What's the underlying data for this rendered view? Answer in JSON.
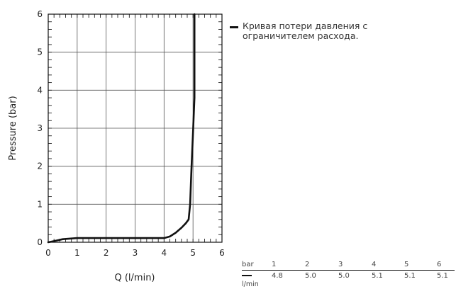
{
  "chart_data": {
    "type": "line",
    "title": "",
    "xlabel": "Q (l/min)",
    "ylabel": "Pressure (bar)",
    "xlim": [
      0,
      6
    ],
    "ylim": [
      0,
      6
    ],
    "x_ticks": [
      "0",
      "1",
      "2",
      "3",
      "4",
      "5",
      "6"
    ],
    "y_ticks": [
      "0",
      "1",
      "2",
      "3",
      "4",
      "5",
      "6"
    ],
    "grid": true,
    "legend_placement": "right",
    "series": [
      {
        "name": "Кривая потери давления с ограничителем расхода.",
        "color": "#111111",
        "points": [
          [
            0.0,
            0.0
          ],
          [
            0.2,
            0.03
          ],
          [
            0.5,
            0.08
          ],
          [
            1.0,
            0.11
          ],
          [
            2.0,
            0.11
          ],
          [
            3.0,
            0.11
          ],
          [
            4.0,
            0.11
          ],
          [
            4.2,
            0.15
          ],
          [
            4.4,
            0.25
          ],
          [
            4.6,
            0.38
          ],
          [
            4.75,
            0.5
          ],
          [
            4.85,
            0.6
          ],
          [
            4.9,
            1.0
          ],
          [
            4.95,
            2.0
          ],
          [
            5.0,
            2.9
          ],
          [
            5.05,
            3.8
          ],
          [
            5.05,
            6.0
          ]
        ]
      }
    ],
    "table": {
      "header_label": "bar",
      "unit_label": "l/min",
      "bar": [
        "1",
        "2",
        "3",
        "4",
        "5",
        "6"
      ],
      "lmin": [
        "4.8",
        "5.0",
        "5.0",
        "5.1",
        "5.1",
        "5.1"
      ]
    }
  }
}
